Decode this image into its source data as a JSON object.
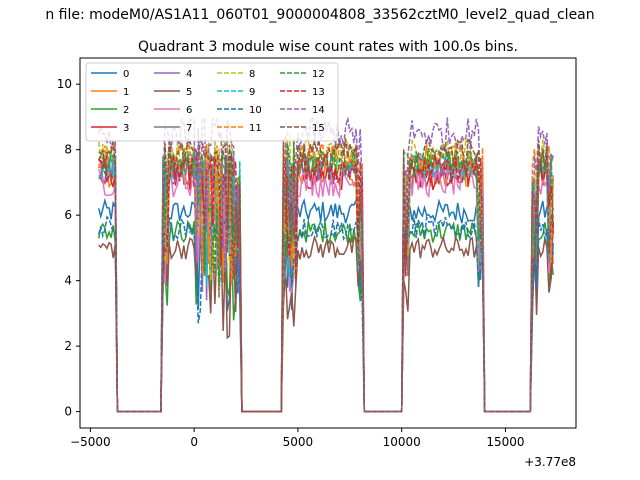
{
  "suptitle": "n file: modeM0/AS1A11_060T01_9000004808_33562cztM0_level2_quad_clean",
  "chart_data": {
    "type": "line",
    "title": "Quadrant 3 module wise count rates with 100.0s bins.",
    "xlabel": "",
    "ylabel": "",
    "x_offset_label": "+3.77e8",
    "xlim": [
      -5500,
      18400
    ],
    "ylim": [
      -0.5,
      10.8
    ],
    "xticks": [
      -5000,
      0,
      5000,
      10000,
      15000
    ],
    "yticks": [
      0,
      2,
      4,
      6,
      8,
      10
    ],
    "grid": false,
    "legend_position": "top-left",
    "legend_columns": 4,
    "gaps": [
      [
        -3700,
        -1500
      ],
      [
        2200,
        4300
      ],
      [
        8100,
        10100
      ],
      [
        13900,
        16300
      ]
    ],
    "on_segments": [
      [
        -4600,
        -3800
      ],
      [
        -1500,
        2200
      ],
      [
        4300,
        8100
      ],
      [
        10100,
        13900
      ],
      [
        16300,
        17300
      ]
    ],
    "series": [
      {
        "name": "0",
        "color": "#1f77b4",
        "style": "solid",
        "level": 6.1,
        "spread": 0.35
      },
      {
        "name": "1",
        "color": "#ff7f0e",
        "style": "solid",
        "level": 7.3,
        "spread": 0.45
      },
      {
        "name": "2",
        "color": "#2ca02c",
        "style": "solid",
        "level": 5.5,
        "spread": 0.35
      },
      {
        "name": "3",
        "color": "#d62728",
        "style": "solid",
        "level": 7.2,
        "spread": 0.45
      },
      {
        "name": "4",
        "color": "#9467bd",
        "style": "solid",
        "level": 7.4,
        "spread": 0.45
      },
      {
        "name": "5",
        "color": "#8c564b",
        "style": "solid",
        "level": 5.0,
        "spread": 0.35
      },
      {
        "name": "6",
        "color": "#e377c2",
        "style": "solid",
        "level": 7.0,
        "spread": 0.45
      },
      {
        "name": "7",
        "color": "#7f7f7f",
        "style": "solid",
        "level": 7.5,
        "spread": 0.45
      },
      {
        "name": "8",
        "color": "#bcbd22",
        "style": "dashed",
        "level": 7.9,
        "spread": 0.45
      },
      {
        "name": "9",
        "color": "#17becf",
        "style": "dashed",
        "level": 7.5,
        "spread": 0.45
      },
      {
        "name": "10",
        "color": "#1f77b4",
        "style": "dashed",
        "level": 5.6,
        "spread": 0.35
      },
      {
        "name": "11",
        "color": "#ff7f0e",
        "style": "dashed",
        "level": 7.8,
        "spread": 0.45
      },
      {
        "name": "12",
        "color": "#2ca02c",
        "style": "dashed",
        "level": 7.6,
        "spread": 0.45
      },
      {
        "name": "13",
        "color": "#d62728",
        "style": "dashed",
        "level": 7.4,
        "spread": 0.45
      },
      {
        "name": "14",
        "color": "#9467bd",
        "style": "dashed",
        "level": 8.5,
        "spread": 0.5
      },
      {
        "name": "15",
        "color": "#8c564b",
        "style": "dashed",
        "level": 7.9,
        "spread": 0.45
      }
    ]
  }
}
